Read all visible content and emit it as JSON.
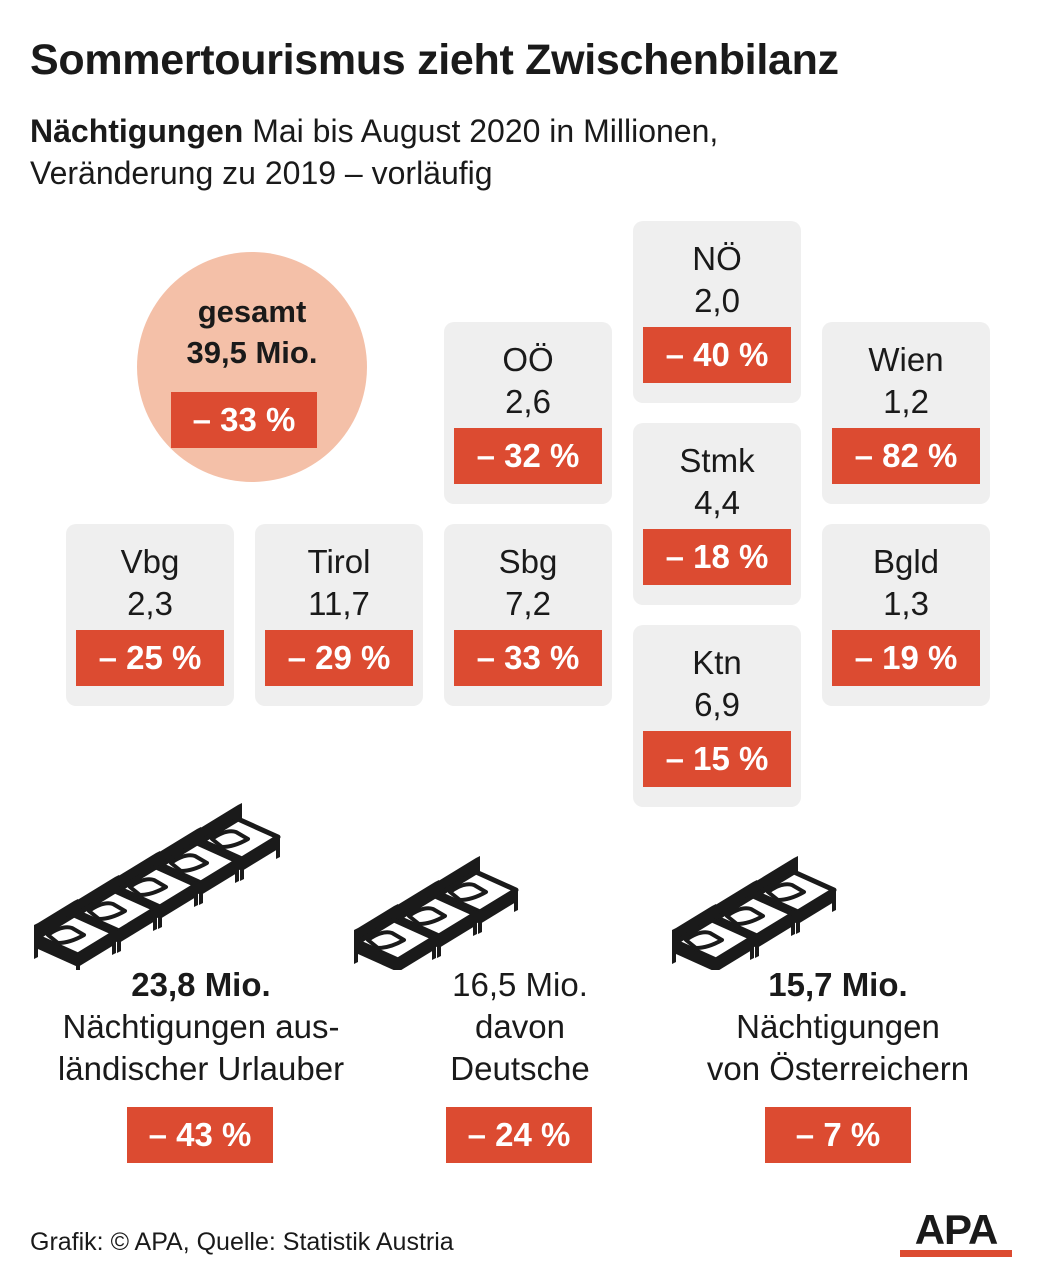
{
  "title": "Sommertourismus zieht Zwischenbilanz",
  "subtitle": {
    "bold": "Nächtigungen",
    "line1_rest": " Mai bis August 2020 in Millionen,",
    "line2": "Veränderung zu 2019 – vorläufig"
  },
  "total": {
    "label": "gesamt",
    "value": "39,5 Mio.",
    "change": "– 33 %"
  },
  "colors": {
    "badge": "#dc4b31",
    "tile": "#efefef",
    "circle": "#f4c0a8",
    "text": "#1a1a1a"
  },
  "chart_data": {
    "type": "table",
    "unit": "Mio. Nächtigungen",
    "regions": [
      {
        "name": "NÖ",
        "value": "2,0",
        "change": "– 40 %"
      },
      {
        "name": "OÖ",
        "value": "2,6",
        "change": "– 32 %"
      },
      {
        "name": "Wien",
        "value": "1,2",
        "change": "– 82 %"
      },
      {
        "name": "Stmk",
        "value": "4,4",
        "change": "– 18 %"
      },
      {
        "name": "Vbg",
        "value": "2,3",
        "change": "– 25 %"
      },
      {
        "name": "Tirol",
        "value": "11,7",
        "change": "– 29 %"
      },
      {
        "name": "Sbg",
        "value": "7,2",
        "change": "– 33 %"
      },
      {
        "name": "Bgld",
        "value": "1,3",
        "change": "– 19 %"
      },
      {
        "name": "Ktn",
        "value": "6,9",
        "change": "– 15 %"
      }
    ]
  },
  "stats": [
    {
      "amount": "23,8 Mio.",
      "desc_lines": [
        "Nächtigungen aus-",
        "ländischer Urlauber"
      ],
      "change": "– 43 %",
      "beds_icon": "five-beds-icon"
    },
    {
      "amount": "16,5 Mio.",
      "desc_lines": [
        "davon",
        "Deutsche"
      ],
      "change": "– 24 %",
      "beds_icon": "three-beds-icon"
    },
    {
      "amount": "15,7 Mio.",
      "desc_lines": [
        "Nächtigungen",
        "von Österreichern"
      ],
      "change": "– 7 %",
      "beds_icon": "three-beds-icon"
    }
  ],
  "source": "Grafik: © APA, Quelle: Statistik Austria",
  "logo": "APA"
}
